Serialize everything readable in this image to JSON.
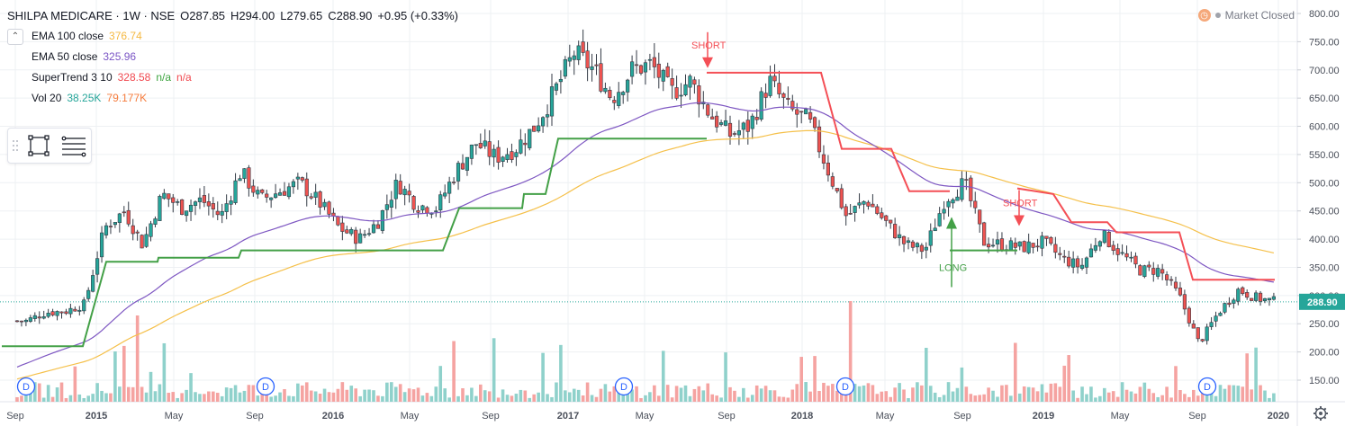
{
  "header": {
    "symbol": "SHILPA MEDICARE · 1W · NSE",
    "ohlc": [
      {
        "label": "O",
        "value": "287.85"
      },
      {
        "label": "H",
        "value": "294.00"
      },
      {
        "label": "L",
        "value": "279.65"
      },
      {
        "label": "C",
        "value": "288.90"
      }
    ],
    "change": "+0.95 (+0.33%)"
  },
  "collapse_icon": "chevron-up-icon",
  "indicators": [
    {
      "name": "EMA 100 close",
      "values": [
        {
          "text": "376.74",
          "color": "#f5b942"
        }
      ]
    },
    {
      "name": "EMA 50 close",
      "values": [
        {
          "text": "325.96",
          "color": "#7a55c5"
        }
      ]
    },
    {
      "name": "SuperTrend 3 10",
      "values": [
        {
          "text": "328.58",
          "color": "#f0484f"
        },
        {
          "text": "n/a",
          "color": "#3da43f"
        },
        {
          "text": "n/a",
          "color": "#f0484f"
        }
      ]
    },
    {
      "name": "Vol 20",
      "values": [
        {
          "text": "38.25K",
          "color": "#26a69a"
        },
        {
          "text": "79.177K",
          "color": "#f57c3d"
        }
      ]
    }
  ],
  "market_status": {
    "label": "Market Closed",
    "icon": "clock-icon"
  },
  "settings_icon": "gear-icon",
  "colors": {
    "up": "#26a69a",
    "down": "#ef5350",
    "ema100": "#f5c04a",
    "ema50": "#7e57c2",
    "st_up": "#43a047",
    "st_down": "#f44f56",
    "grid": "#eef0f3",
    "vol_up": "#8fd1cb",
    "vol_down": "#f5a3a1"
  },
  "chart_data": {
    "type": "candlestick",
    "title": "SHILPA MEDICARE · 1W · NSE",
    "y_axis": {
      "min": 150,
      "max": 800,
      "ticks": [
        150,
        200,
        250,
        300,
        350,
        400,
        450,
        500,
        550,
        600,
        650,
        700,
        750,
        800
      ]
    },
    "x_ticks": [
      "Sep",
      "2015",
      "May",
      "Sep",
      "2016",
      "May",
      "Sep",
      "2017",
      "May",
      "Sep",
      "2018",
      "May",
      "Sep",
      "2019",
      "May",
      "Sep",
      "2020"
    ],
    "last_price": "288.90",
    "close_series": [
      {
        "date": "2014-09",
        "close": 255
      },
      {
        "date": "2014-10",
        "close": 270
      },
      {
        "date": "2014-11",
        "close": 272
      },
      {
        "date": "2014-12",
        "close": 285
      },
      {
        "date": "2015-01",
        "close": 420
      },
      {
        "date": "2015-02",
        "close": 450
      },
      {
        "date": "2015-03",
        "close": 390
      },
      {
        "date": "2015-04",
        "close": 480
      },
      {
        "date": "2015-05",
        "close": 455
      },
      {
        "date": "2015-06",
        "close": 470
      },
      {
        "date": "2015-07",
        "close": 440
      },
      {
        "date": "2015-08",
        "close": 520
      },
      {
        "date": "2015-09",
        "close": 470
      },
      {
        "date": "2015-10",
        "close": 485
      },
      {
        "date": "2015-11",
        "close": 500
      },
      {
        "date": "2015-12",
        "close": 465
      },
      {
        "date": "2016-01",
        "close": 420
      },
      {
        "date": "2016-02",
        "close": 400
      },
      {
        "date": "2016-03",
        "close": 430
      },
      {
        "date": "2016-04",
        "close": 500
      },
      {
        "date": "2016-05",
        "close": 460
      },
      {
        "date": "2016-06",
        "close": 455
      },
      {
        "date": "2016-07",
        "close": 520
      },
      {
        "date": "2016-08",
        "close": 570
      },
      {
        "date": "2016-09",
        "close": 545
      },
      {
        "date": "2016-10",
        "close": 560
      },
      {
        "date": "2016-11",
        "close": 600
      },
      {
        "date": "2016-12",
        "close": 660
      },
      {
        "date": "2017-01",
        "close": 730
      },
      {
        "date": "2017-02",
        "close": 700
      },
      {
        "date": "2017-03",
        "close": 650
      },
      {
        "date": "2017-04",
        "close": 700
      },
      {
        "date": "2017-05",
        "close": 710
      },
      {
        "date": "2017-06",
        "close": 660
      },
      {
        "date": "2017-07",
        "close": 680
      },
      {
        "date": "2017-08",
        "close": 620
      },
      {
        "date": "2017-09",
        "close": 585
      },
      {
        "date": "2017-10",
        "close": 600
      },
      {
        "date": "2017-11",
        "close": 680
      },
      {
        "date": "2017-12",
        "close": 630
      },
      {
        "date": "2018-01",
        "close": 610
      },
      {
        "date": "2018-02",
        "close": 520
      },
      {
        "date": "2018-03",
        "close": 440
      },
      {
        "date": "2018-04",
        "close": 470
      },
      {
        "date": "2018-05",
        "close": 430
      },
      {
        "date": "2018-06",
        "close": 390
      },
      {
        "date": "2018-07",
        "close": 380
      },
      {
        "date": "2018-08",
        "close": 470
      },
      {
        "date": "2018-09",
        "close": 500
      },
      {
        "date": "2018-10",
        "close": 395
      },
      {
        "date": "2018-11",
        "close": 390
      },
      {
        "date": "2018-12",
        "close": 385
      },
      {
        "date": "2019-01",
        "close": 395
      },
      {
        "date": "2019-02",
        "close": 365
      },
      {
        "date": "2019-03",
        "close": 350
      },
      {
        "date": "2019-04",
        "close": 410
      },
      {
        "date": "2019-05",
        "close": 375
      },
      {
        "date": "2019-06",
        "close": 345
      },
      {
        "date": "2019-07",
        "close": 345
      },
      {
        "date": "2019-08",
        "close": 300
      },
      {
        "date": "2019-09",
        "close": 215
      },
      {
        "date": "2019-10",
        "close": 270
      },
      {
        "date": "2019-11",
        "close": 310
      },
      {
        "date": "2019-12",
        "close": 295
      },
      {
        "date": "2020-01",
        "close": 288.9
      }
    ],
    "signals": [
      {
        "type": "short",
        "label": "SHORT",
        "date": "2017-08",
        "price": 735
      },
      {
        "type": "long",
        "label": "LONG",
        "date": "2018-08",
        "price": 350
      },
      {
        "type": "short",
        "label": "SHORT",
        "date": "2018-11",
        "price": 455
      }
    ],
    "dividends": [
      {
        "label": "D",
        "date": "2014-09"
      },
      {
        "label": "D",
        "date": "2015-08"
      },
      {
        "label": "D",
        "date": "2017-04"
      },
      {
        "label": "D",
        "date": "2018-02"
      },
      {
        "label": "D",
        "date": "2019-09"
      }
    ]
  }
}
